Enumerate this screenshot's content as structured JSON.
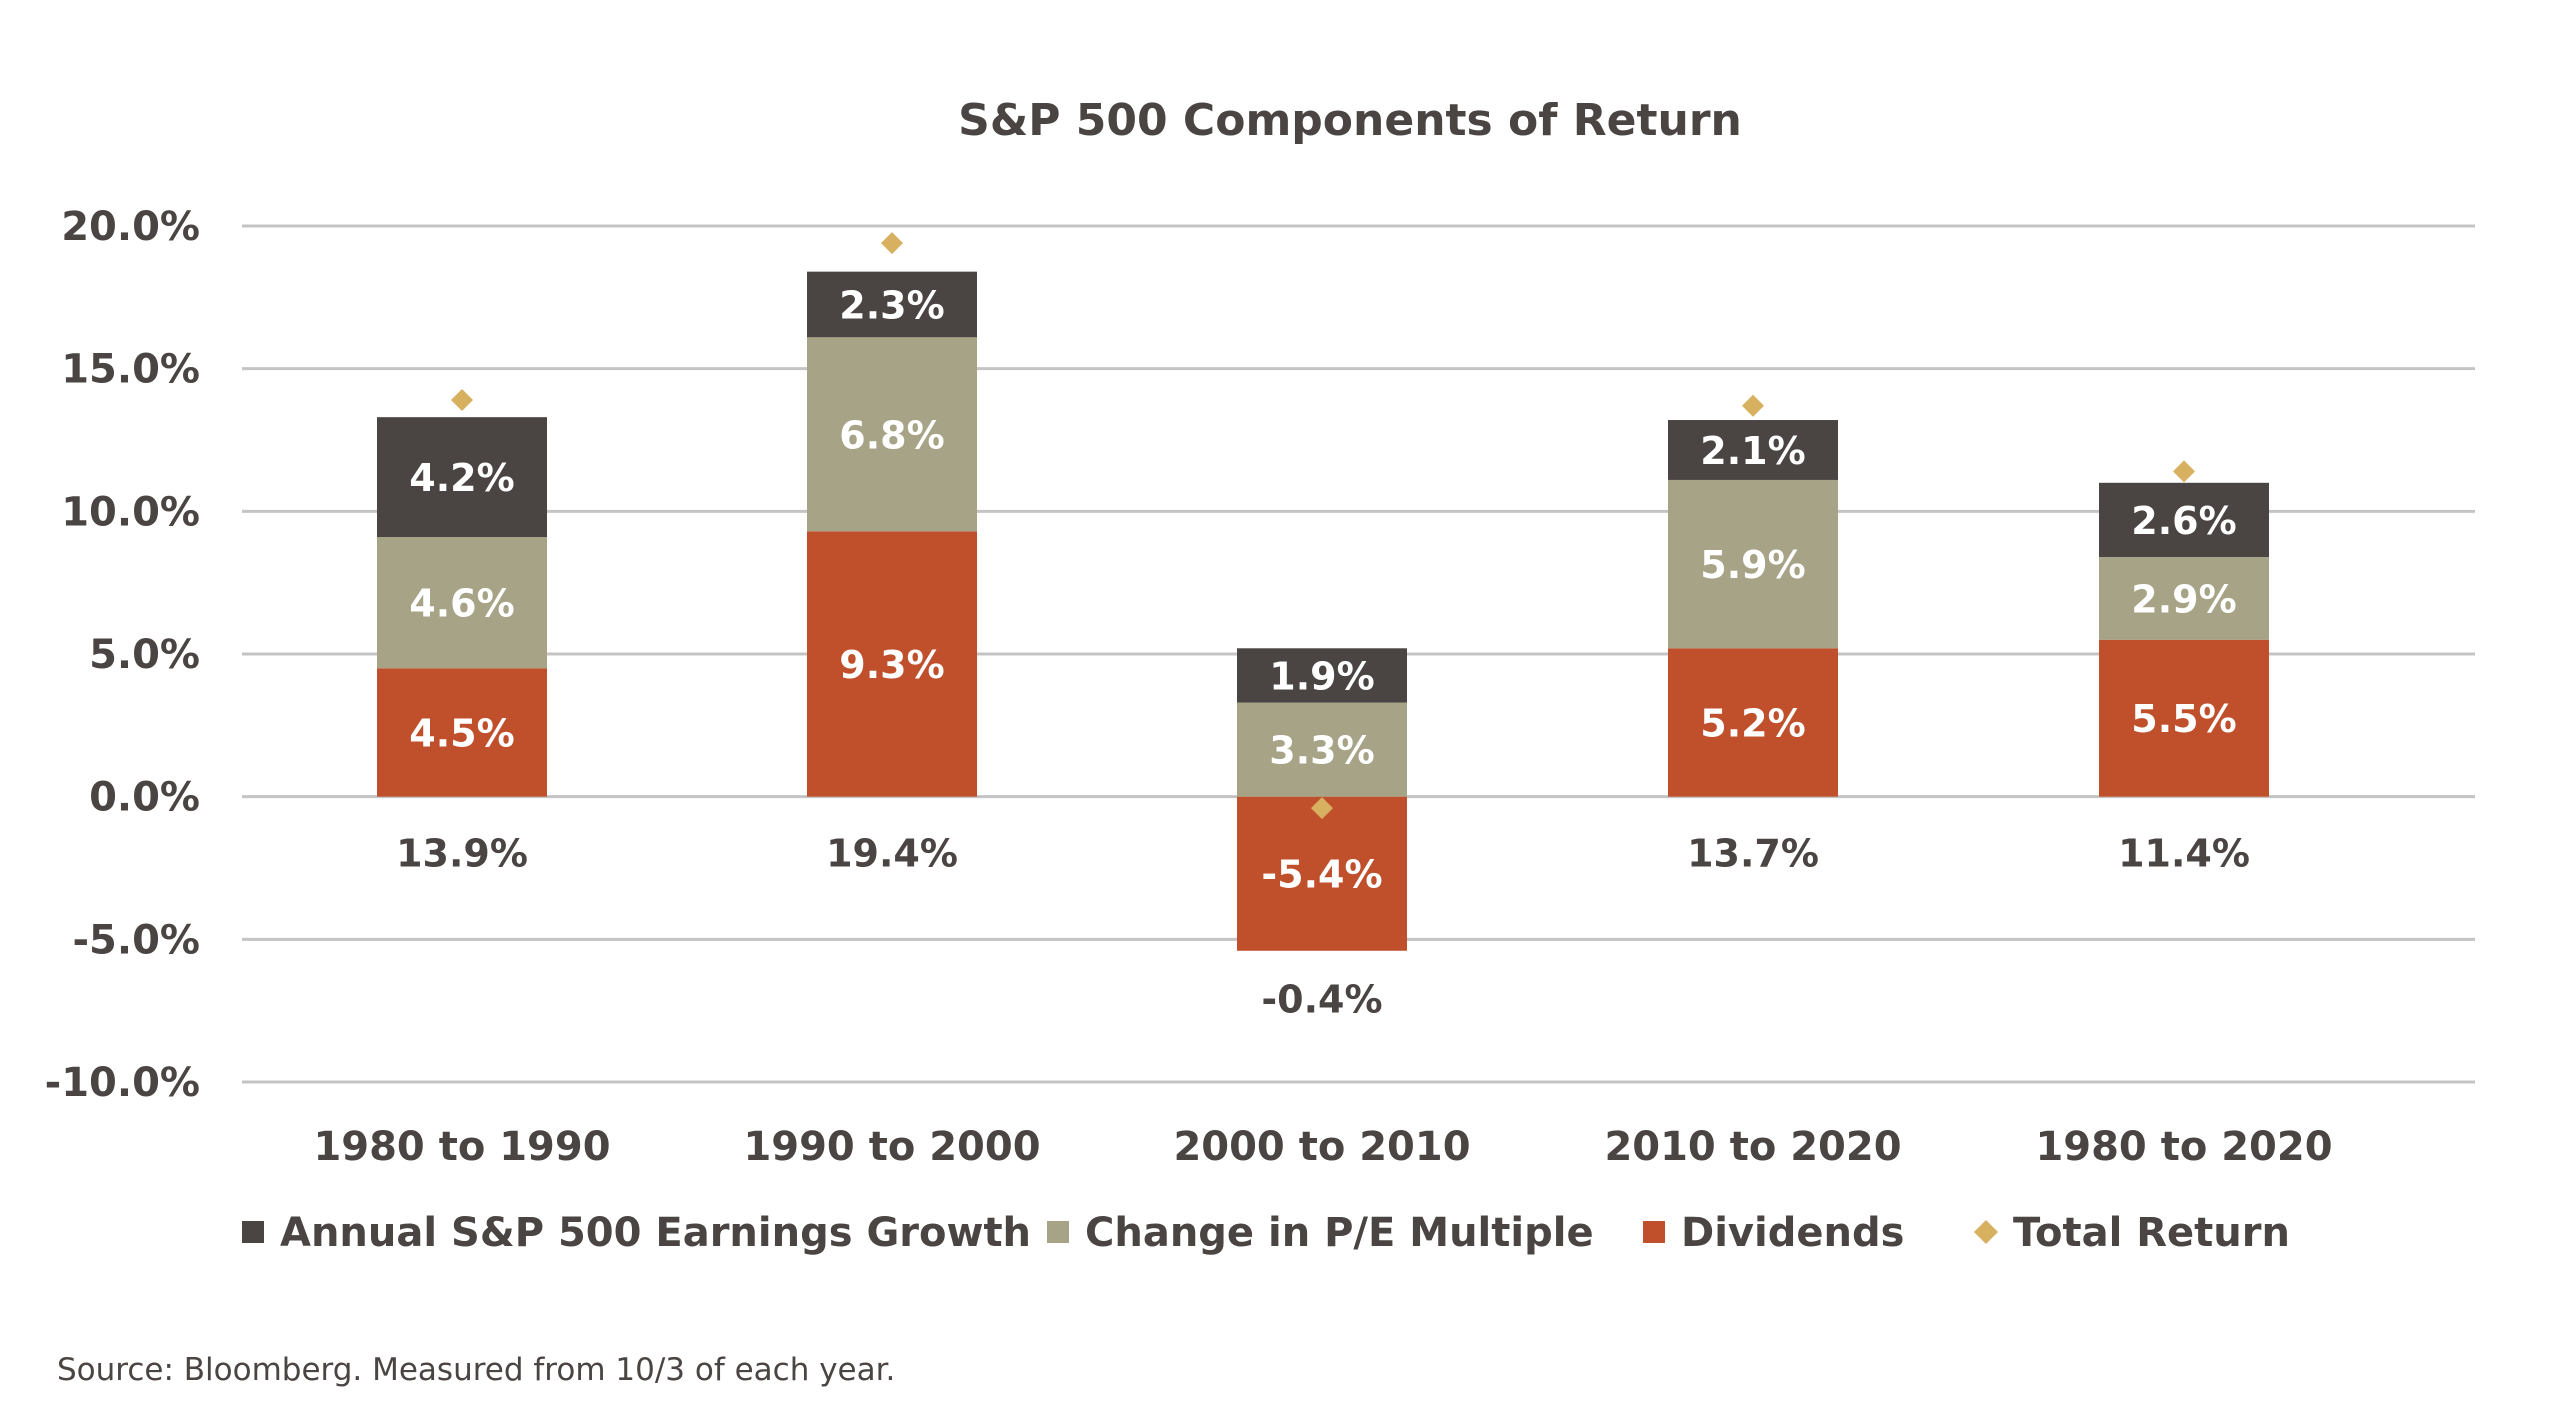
{
  "chart_data": {
    "type": "bar",
    "stacked": true,
    "title": "S&P 500 Components of Return",
    "categories": [
      "1980 to 1990",
      "1990 to 2000",
      "2000 to 2010",
      "2010 to 2020",
      "1980 to 2020"
    ],
    "series": [
      {
        "name": "Dividends",
        "color": "#c0502b",
        "values": [
          4.5,
          9.3,
          -5.4,
          5.2,
          5.5
        ],
        "labels": [
          "4.5%",
          "9.3%",
          "-5.4%",
          "5.2%",
          "5.5%"
        ]
      },
      {
        "name": "Change in P/E Multiple",
        "color": "#a7a387",
        "values": [
          4.6,
          6.8,
          3.3,
          5.9,
          2.9
        ],
        "labels": [
          "4.6%",
          "6.8%",
          "3.3%",
          "5.9%",
          "2.9%"
        ]
      },
      {
        "name": "Annual S&P 500 Earnings Growth",
        "color": "#4a4443",
        "values": [
          4.2,
          2.3,
          1.9,
          2.1,
          2.6
        ],
        "labels": [
          "4.2%",
          "2.3%",
          "1.9%",
          "2.1%",
          "2.6%"
        ]
      }
    ],
    "total_return": {
      "name": "Total Return",
      "color": "#d7b060",
      "values": [
        13.9,
        19.4,
        -0.4,
        13.7,
        11.4
      ],
      "labels": [
        "13.9%",
        "19.4%",
        "-0.4%",
        "13.7%",
        "11.4%"
      ]
    },
    "legend_order": [
      "Annual S&P 500 Earnings Growth",
      "Change in P/E Multiple",
      "Dividends",
      "Total Return"
    ],
    "yticks": [
      "20.0%",
      "15.0%",
      "10.0%",
      "5.0%",
      "0.0%",
      "-5.0%",
      "-10.0%"
    ],
    "ytick_values": [
      20,
      15,
      10,
      5,
      0,
      -5,
      -10
    ],
    "ylim": [
      -10,
      20
    ],
    "grid": true,
    "legend_position": "bottom",
    "source": "Source: Bloomberg. Measured from 10/3 of each year."
  }
}
